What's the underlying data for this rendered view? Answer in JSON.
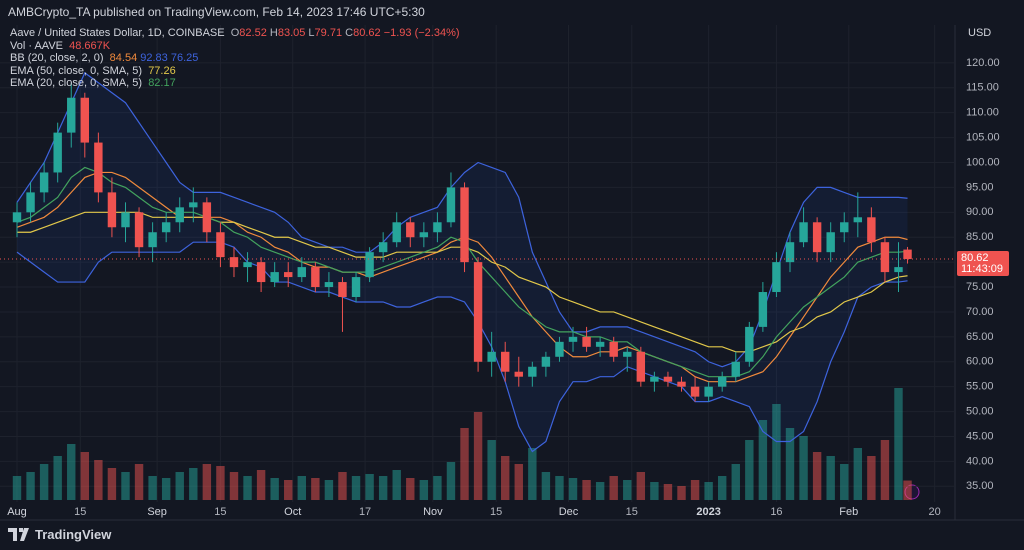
{
  "header": {
    "published": "AMBCrypto_TA published on TradingView.com, Feb 14, 2023 17:46 UTC+5:30",
    "currency": "USD",
    "countdown": "11:43:09"
  },
  "footer": {
    "brand": "TradingView"
  },
  "chart_data": {
    "type": "candlestick",
    "title": "Aave / United States Dollar, 1D, COINBASE",
    "ohlc_labels": [
      "O",
      "H",
      "L",
      "C"
    ],
    "change": "−1.93 (−2.34%)",
    "up_color": "#26a69a",
    "down_color": "#ef5350",
    "x": [
      0,
      3,
      6,
      9,
      12,
      15,
      18,
      21,
      24,
      27,
      30,
      33,
      36,
      39,
      42,
      45,
      48,
      51,
      54,
      57,
      60,
      63,
      66,
      69,
      72,
      75,
      78,
      81,
      84,
      87,
      90,
      93,
      96,
      99,
      102,
      105,
      108,
      111,
      114,
      117,
      120,
      123,
      126,
      129,
      132,
      135,
      138,
      141,
      144,
      147,
      150,
      153,
      156,
      159,
      162,
      165,
      168,
      171,
      174,
      177,
      180,
      183,
      186,
      189,
      192,
      195,
      197
    ],
    "xlim": [
      -3.76,
      207.5
    ],
    "xticks": [
      {
        "value": 0,
        "label": "Aug"
      },
      {
        "value": 14,
        "label": "15"
      },
      {
        "value": 31,
        "label": "Sep"
      },
      {
        "value": 45,
        "label": "15"
      },
      {
        "value": 61,
        "label": "Oct"
      },
      {
        "value": 77,
        "label": "17"
      },
      {
        "value": 92,
        "label": "Nov"
      },
      {
        "value": 106,
        "label": "15"
      },
      {
        "value": 122,
        "label": "Dec"
      },
      {
        "value": 136,
        "label": "15"
      },
      {
        "value": 153,
        "label": "2023"
      },
      {
        "value": 168,
        "label": "16"
      },
      {
        "value": 184,
        "label": "Feb"
      },
      {
        "value": 203,
        "label": "20"
      }
    ],
    "ylim": [
      32.25,
      127.2
    ],
    "yticks": [
      {
        "value": 35,
        "label": "35.00"
      },
      {
        "value": 40,
        "label": "40.00"
      },
      {
        "value": 45,
        "label": "45.00"
      },
      {
        "value": 50,
        "label": "50.00"
      },
      {
        "value": 55,
        "label": "55.00"
      },
      {
        "value": 60,
        "label": "60.00"
      },
      {
        "value": 65,
        "label": "65.00"
      },
      {
        "value": 70,
        "label": "70.00"
      },
      {
        "value": 75,
        "label": "75.00"
      },
      {
        "value": 80,
        "label": "80.00"
      },
      {
        "value": 85,
        "label": "85.00"
      },
      {
        "value": 90,
        "label": "90.00"
      },
      {
        "value": 95,
        "label": "95.00"
      },
      {
        "value": 100,
        "label": "100.00"
      },
      {
        "value": 105,
        "label": "105.00"
      },
      {
        "value": 110,
        "label": "110.00"
      },
      {
        "value": 115,
        "label": "115.00"
      },
      {
        "value": 120,
        "label": "120.00"
      }
    ],
    "grid": true,
    "open": [
      88,
      90,
      94,
      98,
      106,
      113,
      104,
      94,
      87,
      90,
      83,
      86,
      88,
      91,
      92,
      86,
      81,
      79,
      80,
      76,
      78,
      77,
      79,
      75,
      76,
      73,
      77,
      82,
      84,
      88,
      85,
      86,
      88,
      95,
      80,
      60,
      62,
      58,
      57,
      59,
      61,
      64,
      65,
      63,
      64,
      61,
      62,
      56,
      57,
      56,
      55,
      53,
      55,
      57,
      60,
      67,
      74,
      80,
      84,
      88,
      82,
      86,
      88,
      89,
      84,
      78,
      82.52
    ],
    "high": [
      92,
      96,
      100,
      108,
      116,
      114,
      106,
      97,
      92,
      91,
      88,
      90,
      93,
      95,
      93,
      88,
      83,
      82,
      81,
      80,
      80,
      81,
      80,
      78,
      77,
      78,
      83,
      86,
      90,
      89,
      88,
      90,
      98,
      96,
      81,
      66,
      64,
      61,
      60,
      62,
      65,
      67,
      67,
      65,
      65,
      63,
      63,
      58,
      58,
      57,
      57,
      56,
      58,
      62,
      68,
      76,
      82,
      86,
      91,
      89,
      88,
      90,
      94,
      91,
      85,
      84,
      83.05
    ],
    "low": [
      85,
      88,
      92,
      96,
      103,
      101,
      92,
      85,
      84,
      81,
      80,
      84,
      86,
      88,
      84,
      79,
      77,
      76,
      74,
      75,
      75,
      76,
      74,
      73,
      66,
      72,
      76,
      80,
      83,
      83,
      83,
      84,
      87,
      78,
      58,
      57,
      56,
      55,
      55,
      57,
      60,
      62,
      62,
      61,
      60,
      58,
      55,
      54,
      55,
      54,
      52,
      52,
      54,
      56,
      59,
      66,
      73,
      78,
      83,
      80,
      80,
      84,
      85,
      82,
      76,
      74,
      79.71
    ],
    "close": [
      90,
      94,
      98,
      106,
      113,
      104,
      94,
      87,
      90,
      83,
      86,
      88,
      91,
      92,
      86,
      81,
      79,
      80,
      76,
      78,
      77,
      79,
      75,
      76,
      73,
      77,
      82,
      84,
      88,
      85,
      86,
      88,
      95,
      80,
      60,
      62,
      58,
      57,
      59,
      61,
      64,
      65,
      63,
      64,
      61,
      62,
      56,
      57,
      56,
      55,
      53,
      55,
      57,
      60,
      67,
      74,
      80,
      84,
      88,
      82,
      86,
      88,
      89,
      84,
      78,
      79,
      80.62
    ],
    "volume": {
      "name": "Vol · AAVE",
      "last_label": "48.667K",
      "values": [
        60,
        70,
        90,
        110,
        140,
        120,
        100,
        80,
        70,
        90,
        60,
        55,
        70,
        80,
        90,
        85,
        70,
        60,
        75,
        55,
        50,
        60,
        55,
        50,
        70,
        60,
        65,
        60,
        75,
        55,
        50,
        60,
        95,
        180,
        220,
        150,
        110,
        90,
        130,
        70,
        60,
        55,
        50,
        45,
        60,
        50,
        70,
        45,
        40,
        35,
        50,
        45,
        60,
        90,
        150,
        200,
        240,
        180,
        160,
        120,
        110,
        90,
        130,
        110,
        150,
        280,
        48.667
      ]
    },
    "indicators": [
      {
        "name": "BB (20, close, 2, 0)",
        "fill": "rgba(41,98,255,0.08)",
        "lines": [
          {
            "color": "#f08a3c",
            "values": [
              87,
              88,
              89,
              91,
              94,
              97,
              98,
              98,
              97,
              95,
              93,
              91,
              89,
              89,
              89,
              89,
              88,
              86,
              85,
              83,
              82,
              80,
              79,
              79,
              78,
              78,
              77,
              78,
              79,
              80,
              81,
              82,
              84,
              85,
              84,
              81,
              77,
              73,
              69,
              66,
              63,
              61,
              61,
              62,
              62,
              63,
              62,
              61,
              60,
              59,
              57,
              56,
              56,
              56,
              57,
              58,
              61,
              65,
              69,
              73,
              77,
              80,
              83,
              84,
              85,
              85,
              84.54
            ]
          },
          {
            "color": "#3d63dd",
            "values": [
              92,
              96,
              100,
              106,
              112,
              118,
              116,
              114,
              112,
              108,
              104,
              100,
              96,
              94,
              94,
              94,
              93,
              92,
              91,
              90,
              88,
              85,
              84,
              83,
              83,
              82,
              82,
              84,
              87,
              89,
              90,
              91,
              95,
              98,
              100,
              99,
              98,
              93,
              82,
              76,
              70,
              66,
              66,
              67,
              67,
              67,
              66,
              65,
              64,
              63,
              62,
              60,
              59,
              60,
              63,
              70,
              78,
              86,
              92,
              95,
              95,
              94,
              93,
              93,
              93,
              93,
              92.83
            ]
          },
          {
            "color": "#3d63dd",
            "values": [
              82,
              80,
              78,
              76,
              76,
              76,
              80,
              82,
              82,
              82,
              82,
              82,
              82,
              84,
              84,
              84,
              83,
              80,
              79,
              76,
              76,
              75,
              74,
              74,
              73,
              72,
              72,
              72,
              71,
              71,
              72,
              73,
              73,
              72,
              68,
              63,
              56,
              47,
              42,
              44,
              52,
              56,
              56,
              57,
              57,
              59,
              58,
              57,
              56,
              55,
              52,
              52,
              53,
              52,
              51,
              46,
              44,
              44,
              46,
              52,
              60,
              66,
              73,
              75,
              76,
              76,
              76.25
            ]
          }
        ]
      },
      {
        "name": "EMA (50, close, 0, SMA, 5)",
        "lines": [
          {
            "color": "#e2c84a",
            "values": [
              86,
              86,
              87,
              88,
              89,
              90,
              90,
              90,
              90,
              90,
              89,
              89,
              89,
              89,
              89,
              88,
              88,
              87,
              86,
              85,
              85,
              84,
              83,
              83,
              82,
              81,
              81,
              81,
              82,
              82,
              82,
              82,
              83,
              83,
              82,
              80,
              79,
              77,
              76,
              75,
              73,
              72,
              71,
              70,
              70,
              69,
              68,
              67,
              66,
              65,
              64,
              63,
              63,
              62,
              62,
              63,
              64,
              66,
              67,
              69,
              70,
              72,
              73,
              74,
              76,
              77,
              77.26
            ]
          }
        ]
      },
      {
        "name": "EMA (20, close, 0, SMA, 5)",
        "lines": [
          {
            "color": "#43a35e",
            "values": [
              88,
              89,
              91,
              93,
              97,
              99,
              98,
              96,
              95,
              93,
              91,
              90,
              90,
              90,
              89,
              88,
              86,
              85,
              83,
              82,
              81,
              80,
              80,
              79,
              78,
              78,
              78,
              79,
              80,
              81,
              82,
              83,
              85,
              84,
              80,
              77,
              74,
              71,
              69,
              67,
              66,
              66,
              65,
              65,
              64,
              64,
              62,
              61,
              60,
              59,
              58,
              57,
              57,
              57,
              58,
              61,
              65,
              68,
              71,
              73,
              75,
              77,
              80,
              81,
              82,
              82,
              82.17
            ]
          }
        ]
      }
    ]
  }
}
